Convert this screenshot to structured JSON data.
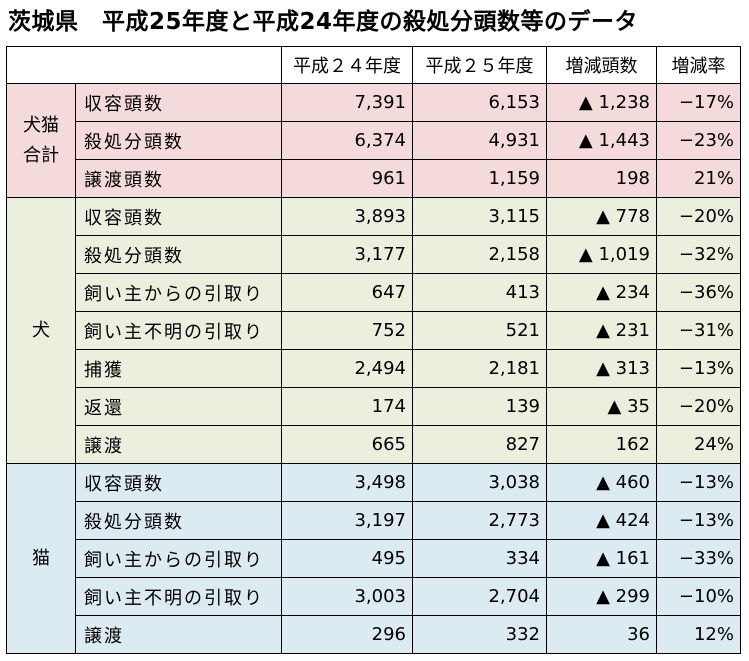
{
  "title": "茨城県　平成25年度と平成24年度の殺処分頭数等のデータ",
  "header": [
    "平成２４年度",
    "平成２５年度",
    "増減頭数",
    "増減率"
  ],
  "groups": [
    {
      "name": "犬猫\n合計",
      "rows": [
        {
          "label": "収容頭数",
          "h24": "7,391",
          "h25": "6,153",
          "change": "▲ 1,238",
          "rate": "−17%"
        },
        {
          "label": "殺処分頭数",
          "h24": "6,374",
          "h25": "4,931",
          "change": "▲ 1,443",
          "rate": "−23%"
        },
        {
          "label": "譲渡頭数",
          "h24": "961",
          "h25": "1,159",
          "change": "198",
          "rate": "21%"
        }
      ]
    },
    {
      "name": "犬",
      "rows": [
        {
          "label": "収容頭数",
          "h24": "3,893",
          "h25": "3,115",
          "change": "▲ 778",
          "rate": "−20%"
        },
        {
          "label": "殺処分頭数",
          "h24": "3,177",
          "h25": "2,158",
          "change": "▲ 1,019",
          "rate": "−32%"
        },
        {
          "label": "飼い主からの引取り",
          "h24": "647",
          "h25": "413",
          "change": "▲ 234",
          "rate": "−36%"
        },
        {
          "label": "飼い主不明の引取り",
          "h24": "752",
          "h25": "521",
          "change": "▲ 231",
          "rate": "−31%"
        },
        {
          "label": "捕獲",
          "h24": "2,494",
          "h25": "2,181",
          "change": "▲ 313",
          "rate": "−13%"
        },
        {
          "label": "返還",
          "h24": "174",
          "h25": "139",
          "change": "▲ 35",
          "rate": "−20%"
        },
        {
          "label": "譲渡",
          "h24": "665",
          "h25": "827",
          "change": "162",
          "rate": "24%"
        }
      ]
    },
    {
      "name": "猫",
      "rows": [
        {
          "label": "収容頭数",
          "h24": "3,498",
          "h25": "3,038",
          "change": "▲ 460",
          "rate": "−13%"
        },
        {
          "label": "殺処分頭数",
          "h24": "3,197",
          "h25": "2,773",
          "change": "▲ 424",
          "rate": "−13%"
        },
        {
          "label": "飼い主からの引取り",
          "h24": "495",
          "h25": "334",
          "change": "▲ 161",
          "rate": "−33%"
        },
        {
          "label": "飼い主不明の引取り",
          "h24": "3,003",
          "h25": "2,704",
          "change": "▲ 299",
          "rate": "−10%"
        },
        {
          "label": "譲渡",
          "h24": "296",
          "h25": "332",
          "change": "36",
          "rate": "12%"
        }
      ]
    }
  ]
}
